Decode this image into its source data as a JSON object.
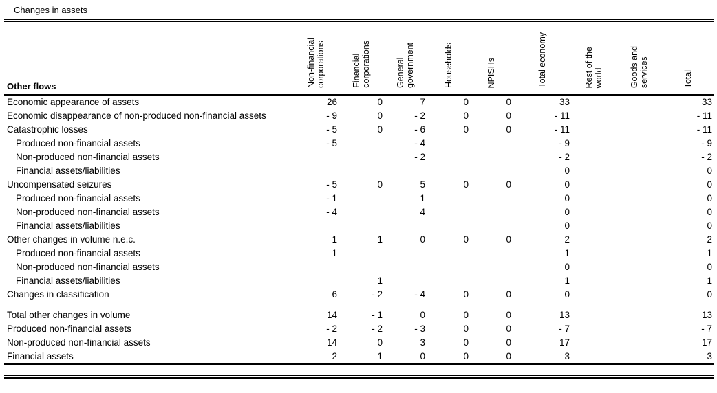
{
  "title": "Changes in assets",
  "table": {
    "row_header_label": "Other flows",
    "columns": [
      "Non-financial\ncorporations",
      "Financial\ncorporations",
      "General\ngovernment",
      "Households",
      "NPISHs",
      "Total economy",
      "Rest of the\nworld",
      "Goods and\nservices",
      "Total"
    ],
    "rows": [
      {
        "label": "Economic appearance of assets",
        "indent": 0,
        "cells": [
          "26",
          "0",
          "7",
          "0",
          "0",
          "33",
          "",
          "",
          "33"
        ]
      },
      {
        "label": "Economic disappearance of non-produced non-financial assets",
        "indent": 0,
        "cells": [
          "- 9",
          "0",
          "- 2",
          "0",
          "0",
          "- 11",
          "",
          "",
          "- 11"
        ]
      },
      {
        "label": "Catastrophic losses",
        "indent": 0,
        "cells": [
          "- 5",
          "0",
          "- 6",
          "0",
          "0",
          "- 11",
          "",
          "",
          "- 11"
        ]
      },
      {
        "label": "Produced non-financial assets",
        "indent": 1,
        "cells": [
          "- 5",
          "",
          "- 4",
          "",
          "",
          "- 9",
          "",
          "",
          "- 9"
        ]
      },
      {
        "label": "Non-produced non-financial assets",
        "indent": 1,
        "cells": [
          "",
          "",
          "- 2",
          "",
          "",
          "- 2",
          "",
          "",
          "- 2"
        ]
      },
      {
        "label": "Financial assets/liabilities",
        "indent": 1,
        "cells": [
          "",
          "",
          "",
          "",
          "",
          "0",
          "",
          "",
          "0"
        ]
      },
      {
        "label": "Uncompensated seizures",
        "indent": 0,
        "cells": [
          "- 5",
          "0",
          "5",
          "0",
          "0",
          "0",
          "",
          "",
          "0"
        ]
      },
      {
        "label": "Produced non-financial assets",
        "indent": 1,
        "cells": [
          "- 1",
          "",
          "1",
          "",
          "",
          "0",
          "",
          "",
          "0"
        ]
      },
      {
        "label": "Non-produced non-financial assets",
        "indent": 1,
        "cells": [
          "- 4",
          "",
          "4",
          "",
          "",
          "0",
          "",
          "",
          "0"
        ]
      },
      {
        "label": "Financial assets/liabilities",
        "indent": 1,
        "cells": [
          "",
          "",
          "",
          "",
          "",
          "0",
          "",
          "",
          "0"
        ]
      },
      {
        "label": "Other changes in volume n.e.c.",
        "indent": 0,
        "cells": [
          "1",
          "1",
          "0",
          "0",
          "0",
          "2",
          "",
          "",
          "2"
        ]
      },
      {
        "label": "Produced non-financial assets",
        "indent": 1,
        "cells": [
          "1",
          "",
          "",
          "",
          "",
          "1",
          "",
          "",
          "1"
        ]
      },
      {
        "label": "Non-produced non-financial assets",
        "indent": 1,
        "cells": [
          "",
          "",
          "",
          "",
          "",
          "0",
          "",
          "",
          "0"
        ]
      },
      {
        "label": "Financial assets/liabilities",
        "indent": 1,
        "cells": [
          "",
          "1",
          "",
          "",
          "",
          "1",
          "",
          "",
          "1"
        ]
      },
      {
        "label": "Changes in classification",
        "indent": 0,
        "cells": [
          "6",
          "- 2",
          "- 4",
          "0",
          "0",
          "0",
          "",
          "",
          "0"
        ]
      },
      {
        "label": "Total other changes in volume",
        "indent": 0,
        "gap_before": true,
        "cells": [
          "14",
          "- 1",
          "0",
          "0",
          "0",
          "13",
          "",
          "",
          "13"
        ]
      },
      {
        "label": "Produced non-financial assets",
        "indent": 0,
        "cells": [
          "- 2",
          "- 2",
          "- 3",
          "0",
          "0",
          "- 7",
          "",
          "",
          "- 7"
        ]
      },
      {
        "label": "Non-produced non-financial assets",
        "indent": 0,
        "cells": [
          "14",
          "0",
          "3",
          "0",
          "0",
          "17",
          "",
          "",
          "17"
        ]
      },
      {
        "label": "Financial assets",
        "indent": 0,
        "cells": [
          "2",
          "1",
          "0",
          "0",
          "0",
          "3",
          "",
          "",
          "3"
        ]
      }
    ]
  }
}
